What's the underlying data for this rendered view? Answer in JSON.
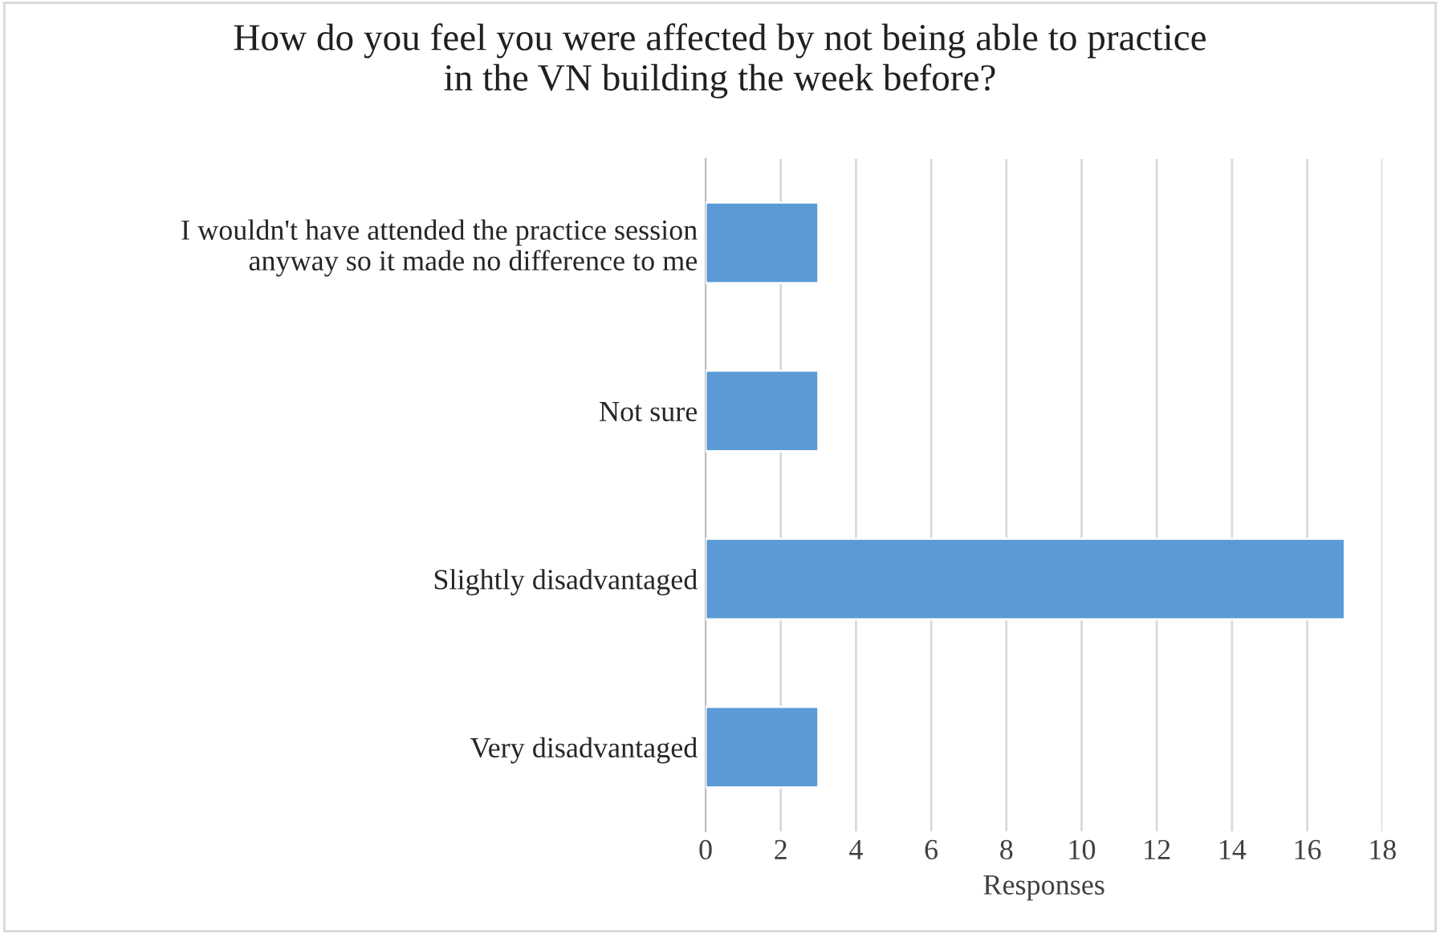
{
  "chart_data": {
    "type": "bar",
    "orientation": "horizontal",
    "title": "How do you feel you were affected by not being able to practice\nin the VN building the week before?",
    "xlabel": "Responses",
    "categories": [
      "I wouldn't have attended the practice session\nanyway so it made no difference to me",
      "Not sure",
      "Slightly disadvantaged",
      "Very disadvantaged"
    ],
    "values": [
      3,
      3,
      17,
      3
    ],
    "color": "#5b9bd5",
    "xlim": [
      0,
      18
    ],
    "xticks": [
      0,
      2,
      4,
      6,
      8,
      10,
      12,
      14,
      16,
      18
    ],
    "grid": "x"
  }
}
